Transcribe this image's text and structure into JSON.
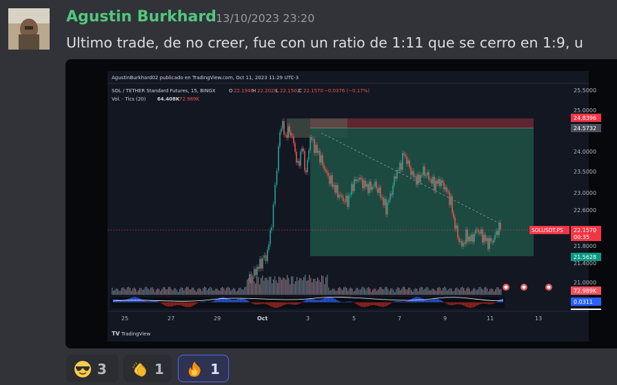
{
  "message": {
    "author": "Agustin Burkhard",
    "timestamp": "13/10/2023 23:20",
    "text": "Ultimo trade, de no creer, fue con un ratio de 1:11 que se cerro en 1:9,  u"
  },
  "attachment": {
    "header": "AgustinBurkhard02 publicado en TradingView.com, Oct 11, 2023 11:29 UTC-3",
    "symbol_line": "SOL / TETHER Standard Futures, 15, BINGX",
    "ohlc": {
      "o_label": "O",
      "o": "22.1946",
      "h_label": "H",
      "h": "22.2028",
      "l_label": "L",
      "l": "22.1502",
      "c_label": "C",
      "c": "22.1570",
      "change": "−0.0376 (−0.17%)"
    },
    "volume_line": {
      "label": "Vol. · Tics (20)",
      "v1": "64.408K",
      "v2": "72.989K"
    },
    "price_axis": [
      "25.5000",
      "25.0000",
      "24.0000",
      "23.5000",
      "23.0000",
      "22.6000",
      "21.8000",
      "21.4000",
      "21.0000"
    ],
    "price_tags": {
      "stop": "24.8396",
      "entry": "24.5732",
      "symbol": "SOLUSDT.PS",
      "last_price": "22.1570",
      "countdown": "00:35",
      "target": "21.5628",
      "volume": "72.989K",
      "indicator": "0.0311"
    },
    "time_axis": [
      "25",
      "27",
      "29",
      "Oct",
      "3",
      "5",
      "7",
      "9",
      "11",
      "13"
    ],
    "footer": "TradingView",
    "colors": {
      "profit": "#1e5245",
      "stop": "#6b2a33",
      "up": "#26a69a",
      "down": "#ef5350"
    }
  },
  "reactions": [
    {
      "emoji": "sunglasses-emoji",
      "count": "3",
      "me": false
    },
    {
      "emoji": "clap-emoji",
      "count": "1",
      "me": false
    },
    {
      "emoji": "fire-emoji",
      "count": "1",
      "me": true
    }
  ]
}
